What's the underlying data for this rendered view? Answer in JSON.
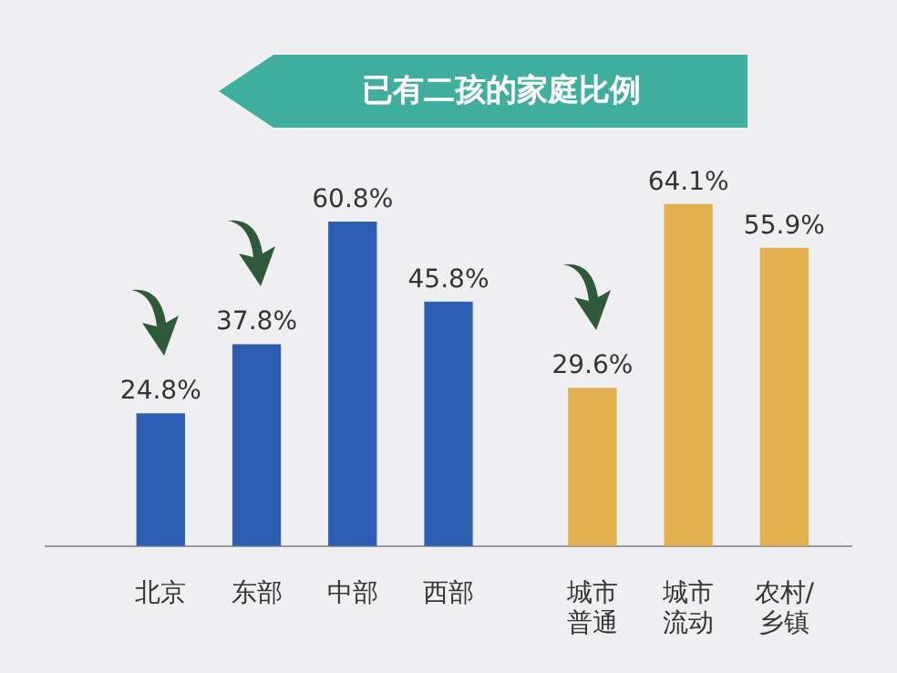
{
  "chart_data": {
    "type": "bar",
    "title": "已有二孩的家庭比例",
    "categories": [
      "北京",
      "东部",
      "中部",
      "西部",
      "城市普通",
      "城市流动",
      "农村/\n乡镇"
    ],
    "values": [
      24.8,
      37.8,
      60.8,
      45.8,
      29.6,
      64.1,
      55.9
    ],
    "colors": [
      "#2c5fb3",
      "#2c5fb3",
      "#2c5fb3",
      "#2c5fb3",
      "#e2b04e",
      "#e2b04e",
      "#e2b04e"
    ],
    "value_labels": [
      "24.8%",
      "37.8%",
      "60.8%",
      "45.8%",
      "29.6%",
      "64.1%",
      "55.9%"
    ]
  }
}
